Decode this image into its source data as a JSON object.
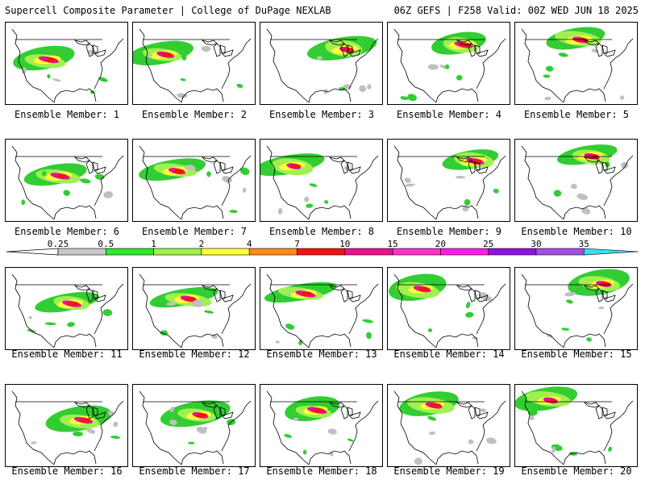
{
  "header": {
    "left": "Supercell Composite Parameter | College of DuPage NEXLAB",
    "right": "06Z GEFS | F258 Valid: 00Z WED JUN 18 2025"
  },
  "label_prefix": "Ensemble Member: ",
  "members": [
    {
      "label": "Ensemble Member: 1"
    },
    {
      "label": "Ensemble Member: 2"
    },
    {
      "label": "Ensemble Member: 3"
    },
    {
      "label": "Ensemble Member: 4"
    },
    {
      "label": "Ensemble Member: 5"
    },
    {
      "label": "Ensemble Member: 6"
    },
    {
      "label": "Ensemble Member: 7"
    },
    {
      "label": "Ensemble Member: 8"
    },
    {
      "label": "Ensemble Member: 9"
    },
    {
      "label": "Ensemble Member: 10"
    },
    {
      "label": "Ensemble Member: 11"
    },
    {
      "label": "Ensemble Member: 12"
    },
    {
      "label": "Ensemble Member: 13"
    },
    {
      "label": "Ensemble Member: 14"
    },
    {
      "label": "Ensemble Member: 15"
    },
    {
      "label": "Ensemble Member: 16"
    },
    {
      "label": "Ensemble Member: 17"
    },
    {
      "label": "Ensemble Member: 18"
    },
    {
      "label": "Ensemble Member: 19"
    },
    {
      "label": "Ensemble Member: 20"
    }
  ],
  "colorbar": {
    "ticks": [
      "0.25",
      "0.5",
      "1",
      "2",
      "4",
      "7",
      "10",
      "15",
      "20",
      "25",
      "30",
      "35"
    ],
    "colors": [
      "#c8c8c8",
      "#32e632",
      "#a0f050",
      "#ffff3c",
      "#ff8c1e",
      "#f01414",
      "#e6148c",
      "#ff32c8",
      "#ff1ee6",
      "#8c14dc",
      "#a050dc",
      "#3cdcf0"
    ]
  },
  "shading_colors": {
    "gray": "#c0c0c0",
    "green": "#32cd32",
    "light_green": "#a0f050",
    "yellow": "#ffff3c",
    "orange": "#ff8c1e",
    "red": "#f01414",
    "magenta": "#e6148c"
  }
}
